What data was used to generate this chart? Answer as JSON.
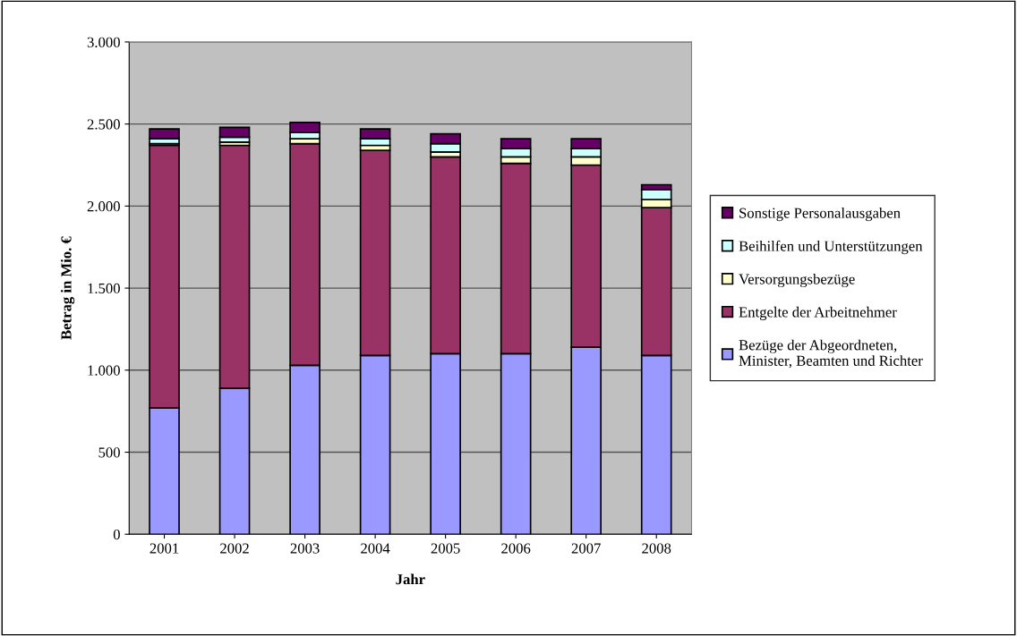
{
  "chart_data": {
    "type": "bar",
    "stacked": true,
    "xlabel": "Jahr",
    "ylabel": "Betrag in Mio. €",
    "categories": [
      "2001",
      "2002",
      "2003",
      "2004",
      "2005",
      "2006",
      "2007",
      "2008"
    ],
    "series": [
      {
        "name": "Bezüge der Abgeordneten,\nMinister, Beamten und Richter",
        "color": "#9999ff",
        "values": [
          770,
          890,
          1030,
          1090,
          1100,
          1100,
          1140,
          1090
        ]
      },
      {
        "name": "Entgelte der Arbeitnehmer",
        "color": "#993366",
        "values": [
          1600,
          1480,
          1350,
          1250,
          1200,
          1160,
          1110,
          900
        ]
      },
      {
        "name": "Versorgungsbezüge",
        "color": "#ffffcc",
        "values": [
          10,
          20,
          30,
          30,
          30,
          40,
          50,
          50
        ]
      },
      {
        "name": "Beihilfen und Unterstützungen",
        "color": "#ccffff",
        "values": [
          30,
          30,
          40,
          40,
          50,
          50,
          50,
          60
        ]
      },
      {
        "name": "Sonstige Personalausgaben",
        "color": "#660066",
        "values": [
          60,
          60,
          60,
          60,
          60,
          60,
          60,
          30
        ]
      }
    ],
    "ylim": [
      0,
      3000
    ],
    "yticks": [
      0,
      500,
      {
        "value": 1000,
        "label": "1.000"
      },
      {
        "value": 1500,
        "label": "1.500"
      },
      {
        "value": 2000,
        "label": "2.000"
      },
      {
        "value": 2500,
        "label": "2.500"
      },
      {
        "value": 3000,
        "label": "3.000"
      }
    ],
    "grid": "y",
    "legend": "right"
  }
}
